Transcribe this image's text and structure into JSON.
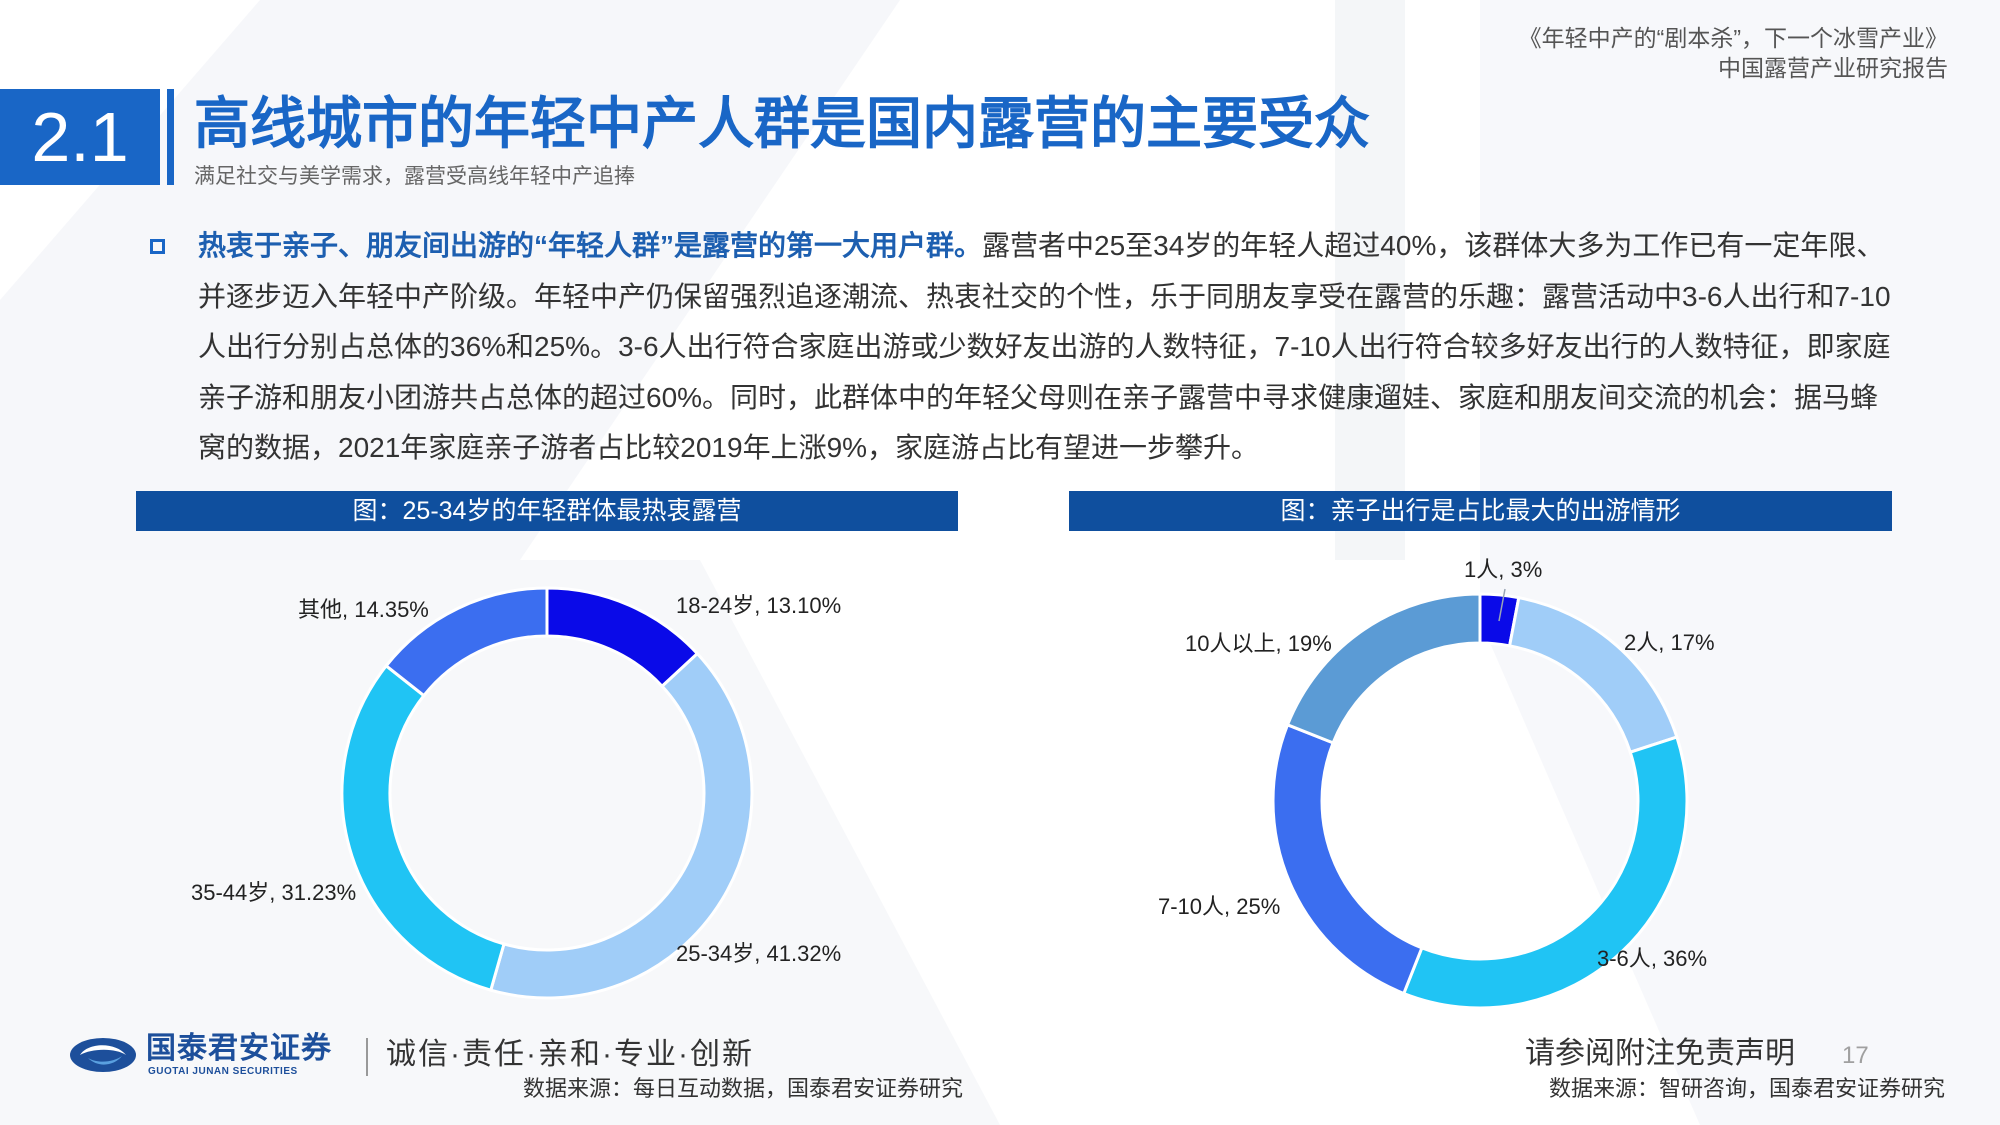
{
  "theme": {
    "accent": "#1966c6",
    "lead": "#1d5fb0",
    "banner": "#0f4f9e",
    "text": "#333333",
    "logo": "#1d4f9b"
  },
  "header": {
    "report_title": "《年轻中产的“剧本杀”，下一个冰雪产业》",
    "report_subtitle": "中国露营产业研究报告"
  },
  "section": {
    "number": "2.1",
    "title": "高线城市的年轻中产人群是国内露营的主要受众",
    "subtitle": "满足社交与美学需求，露营受高线年轻中产追捧"
  },
  "paragraph": {
    "lead": "热衷于亲子、朋友间出游的“年轻人群”是露营的第一大用户群。",
    "lines": [
      "露营者中25至34岁的年轻人超过40%，该群体大多为工作已有一定年限、",
      "并逐步迈入年轻中产阶级。年轻中产仍保留强烈追逐潮流、热衷社交的个性，乐于同朋友享受在露营的乐趣：露营活动中3-6人出行和7-10",
      "人出行分别占总体的36%和25%。3-6人出行符合家庭出游或少数好友出游的人数特征，7-10人出行符合较多好友出行的人数特征，即家庭",
      "亲子游和朋友小团游共占总体的超过60%。同时，此群体中的年轻父母则在亲子露营中寻求健康遛娃、家庭和朋友间交流的机会：据马蜂",
      "窝的数据，2021年家庭亲子游者占比较2019年上涨9%，家庭游占比有望进一步攀升。"
    ]
  },
  "chart_data": [
    {
      "type": "pie",
      "style": "donut",
      "title": "图：25-34岁的年轻群体最热衷露营",
      "categories": [
        "18-24岁",
        "25-34岁",
        "35-44岁",
        "其他"
      ],
      "values": [
        13.1,
        41.32,
        31.23,
        14.35
      ],
      "value_labels": [
        "13.10%",
        "41.32%",
        "31.23%",
        "14.35%"
      ],
      "label_separator": ", ",
      "colors": [
        "#0a0ae8",
        "#a0cdf8",
        "#20c4f4",
        "#3b6ef0"
      ],
      "legend": "none",
      "source": "数据来源：每日互动数据，国泰君安证券研究"
    },
    {
      "type": "pie",
      "style": "donut",
      "title": "图：亲子出行是占比最大的出游情形",
      "categories": [
        "1人",
        "2人",
        "3-6人",
        "7-10人",
        "10人以上"
      ],
      "values": [
        3,
        17,
        36,
        25,
        19
      ],
      "value_labels": [
        "3%",
        "17%",
        "36%",
        "25%",
        "19%"
      ],
      "label_separator": ", ",
      "colors": [
        "#0a0ae8",
        "#a0cdf8",
        "#20c4f4",
        "#3b6ef0",
        "#5b9bd5"
      ],
      "legend": "none",
      "source": "数据来源：智研咨询，国泰君安证券研究"
    }
  ],
  "footer": {
    "company_name": "国泰君安证券",
    "company_name_en": "GUOTAI JUNAN SECURITIES",
    "slogan": "诚信·责任·亲和·专业·创新",
    "disclaimer": "请参阅附注免责声明",
    "page_number": "17"
  }
}
